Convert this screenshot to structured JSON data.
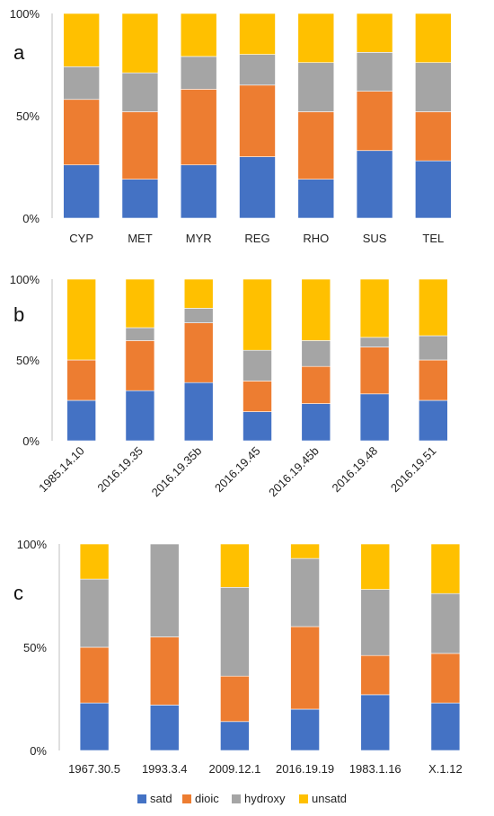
{
  "colors": {
    "satd": "#4472C4",
    "dioic": "#ED7D31",
    "hydroxy": "#A5A5A5",
    "unsatd": "#FFC000"
  },
  "legend": [
    {
      "key": "satd",
      "label": "satd"
    },
    {
      "key": "dioic",
      "label": "dioic"
    },
    {
      "key": "hydroxy",
      "label": "hydroxy"
    },
    {
      "key": "unsatd",
      "label": "unsatd"
    }
  ],
  "chart_data": [
    {
      "type": "bar",
      "stacked": true,
      "panel_label": "a",
      "title": "",
      "xlabel": "",
      "ylabel": "",
      "ylim": [
        0,
        100
      ],
      "yticks": [
        "0%",
        "50%",
        "100%"
      ],
      "categories": [
        "CYP",
        "MET",
        "MYR",
        "REG",
        "RHO",
        "SUS",
        "TEL"
      ],
      "series": [
        {
          "name": "satd",
          "values": [
            26,
            19,
            26,
            30,
            19,
            33,
            28
          ]
        },
        {
          "name": "dioic",
          "values": [
            32,
            33,
            37,
            35,
            33,
            29,
            24
          ]
        },
        {
          "name": "hydroxy",
          "values": [
            16,
            19,
            16,
            15,
            24,
            19,
            24
          ]
        },
        {
          "name": "unsatd",
          "values": [
            26,
            29,
            21,
            20,
            24,
            19,
            24
          ]
        }
      ]
    },
    {
      "type": "bar",
      "stacked": true,
      "panel_label": "b",
      "title": "",
      "xlabel": "",
      "ylabel": "",
      "ylim": [
        0,
        100
      ],
      "yticks": [
        "0%",
        "50%",
        "100%"
      ],
      "categories": [
        "1985.14.10",
        "2016.19.35",
        "2016.19.35b",
        "2016.19.45",
        "2016.19.45b",
        "2016.19.48",
        "2016.19.51"
      ],
      "series": [
        {
          "name": "satd",
          "values": [
            25,
            31,
            36,
            18,
            23,
            29,
            25
          ]
        },
        {
          "name": "dioic",
          "values": [
            25,
            31,
            37,
            19,
            23,
            29,
            25
          ]
        },
        {
          "name": "hydroxy",
          "values": [
            0,
            8,
            9,
            19,
            16,
            6,
            15
          ]
        },
        {
          "name": "unsatd",
          "values": [
            50,
            30,
            18,
            44,
            38,
            36,
            35
          ]
        }
      ]
    },
    {
      "type": "bar",
      "stacked": true,
      "panel_label": "c",
      "title": "",
      "xlabel": "",
      "ylabel": "",
      "ylim": [
        0,
        100
      ],
      "yticks": [
        "0%",
        "50%",
        "100%"
      ],
      "categories": [
        "1967.30.5",
        "1993.3.4",
        "2009.12.1",
        "2016.19.19",
        "1983.1.16",
        "X.1.12"
      ],
      "series": [
        {
          "name": "satd",
          "values": [
            23,
            22,
            14,
            20,
            27,
            23
          ]
        },
        {
          "name": "dioic",
          "values": [
            27,
            33,
            22,
            40,
            19,
            24
          ]
        },
        {
          "name": "hydroxy",
          "values": [
            33,
            45,
            43,
            33,
            32,
            29
          ]
        },
        {
          "name": "unsatd",
          "values": [
            17,
            0,
            21,
            7,
            22,
            24
          ]
        }
      ]
    }
  ]
}
